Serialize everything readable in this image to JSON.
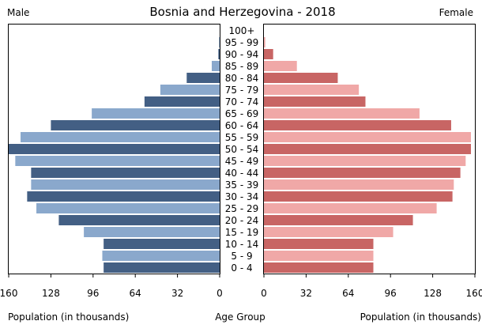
{
  "chart_data": {
    "type": "bar",
    "title": "Bosnia and Herzegovina - 2018",
    "left_label": "Male",
    "right_label": "Female",
    "xlabel_left": "Population (in thousands)",
    "xlabel_center": "Age Group",
    "xlabel_right": "Population (in thousands)",
    "xlim": [
      0,
      160
    ],
    "ticks": [
      "160",
      "128",
      "96",
      "64",
      "32",
      "0"
    ],
    "ticks_right": [
      "0",
      "32",
      "64",
      "96",
      "128",
      "160"
    ],
    "categories": [
      "0 - 4",
      "5 - 9",
      "10 - 14",
      "15 - 19",
      "20 - 24",
      "25 - 29",
      "30 - 34",
      "35 - 39",
      "40 - 44",
      "45 - 49",
      "50 - 54",
      "55 - 59",
      "60 - 64",
      "65 - 69",
      "70 - 74",
      "75 - 79",
      "80 - 84",
      "85 - 89",
      "90 - 94",
      "95 - 99",
      "100+"
    ],
    "series": [
      {
        "name": "Male",
        "values": [
          88,
          89,
          88,
          103,
          122,
          139,
          146,
          143,
          143,
          155,
          160,
          151,
          128,
          97,
          57,
          45,
          25,
          6,
          1,
          0.5,
          0
        ]
      },
      {
        "name": "Female",
        "values": [
          83,
          83,
          83,
          98,
          113,
          131,
          143,
          144,
          149,
          153,
          157,
          157,
          142,
          118,
          77,
          72,
          56,
          25,
          7,
          1,
          0
        ]
      }
    ],
    "colors": {
      "male_dark": "#435f84",
      "male_light": "#8aa8cc",
      "female_dark": "#c86564",
      "female_light": "#f0a8a7"
    }
  }
}
